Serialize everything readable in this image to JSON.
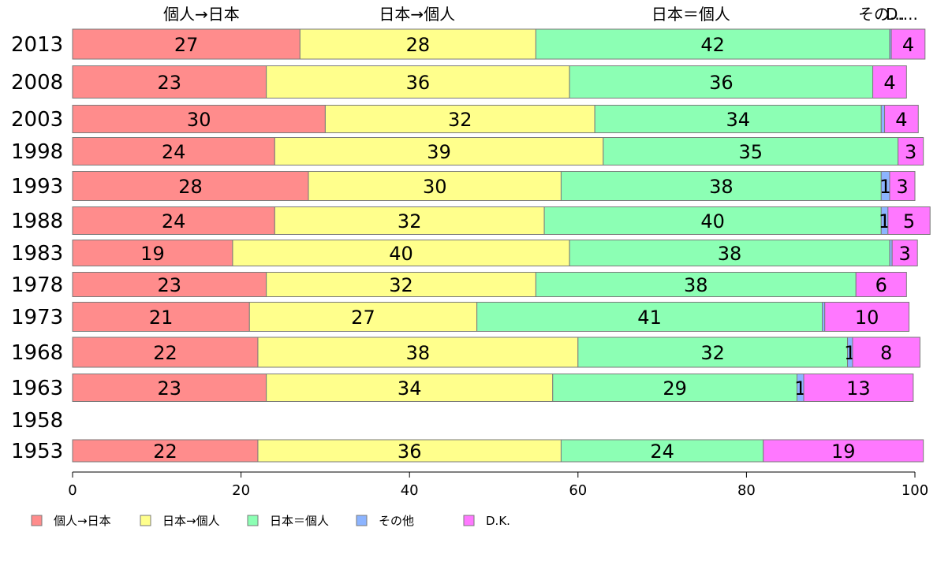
{
  "chart_data": {
    "type": "bar",
    "orientation": "horizontal",
    "stacked": true,
    "title": "",
    "xlabel": "",
    "ylabel": "",
    "xlim": [
      0,
      100
    ],
    "x_ticks": [
      "0",
      "20",
      "40",
      "60",
      "80",
      "100"
    ],
    "categories": [
      "2013",
      "2008",
      "2003",
      "1998",
      "1993",
      "1988",
      "1983",
      "1978",
      "1973",
      "1968",
      "1963",
      "1958",
      "1953"
    ],
    "column_headers": [
      "個人→日本",
      "日本→個人",
      "日本＝個人",
      "その...",
      "D...."
    ],
    "series": [
      {
        "name": "個人→日本",
        "color": "#ff8c8c",
        "values": [
          27,
          23,
          30,
          24,
          28,
          24,
          19,
          23,
          21,
          22,
          23,
          null,
          22
        ],
        "labels": [
          "27",
          "23",
          "30",
          "24",
          "28",
          "24",
          "19",
          "23",
          "21",
          "22",
          "23",
          "",
          "22"
        ]
      },
      {
        "name": "日本→個人",
        "color": "#ffff8c",
        "values": [
          28,
          36,
          32,
          39,
          30,
          32,
          40,
          32,
          27,
          38,
          34,
          null,
          36
        ],
        "labels": [
          "28",
          "36",
          "32",
          "39",
          "30",
          "32",
          "40",
          "32",
          "27",
          "38",
          "34",
          "",
          "36"
        ]
      },
      {
        "name": "日本＝個人",
        "color": "#8cffb4",
        "values": [
          42,
          36,
          34,
          35,
          38,
          40,
          38,
          38,
          41,
          32,
          29,
          null,
          24
        ],
        "labels": [
          "42",
          "36",
          "34",
          "35",
          "38",
          "40",
          "38",
          "38",
          "41",
          "32",
          "29",
          "",
          "24"
        ]
      },
      {
        "name": "その他",
        "color": "#8cb4ff",
        "values": [
          0.2,
          0,
          0.4,
          0,
          1,
          0.8,
          0.3,
          0,
          0.3,
          0.6,
          0.8,
          null,
          0
        ],
        "labels": [
          "",
          "",
          "",
          "",
          "1",
          "1",
          "",
          "",
          "",
          "1",
          "1",
          "",
          ""
        ]
      },
      {
        "name": "D.K.",
        "color": "#ff78ff",
        "values": [
          4,
          4,
          4,
          3,
          3,
          5,
          3,
          6,
          10,
          8,
          13,
          null,
          19
        ],
        "labels": [
          "4",
          "4",
          "4",
          "3",
          "3",
          "5",
          "3",
          "6",
          "10",
          "8",
          "13",
          "",
          "19"
        ]
      }
    ],
    "grid": false,
    "legend_position": "bottom"
  }
}
